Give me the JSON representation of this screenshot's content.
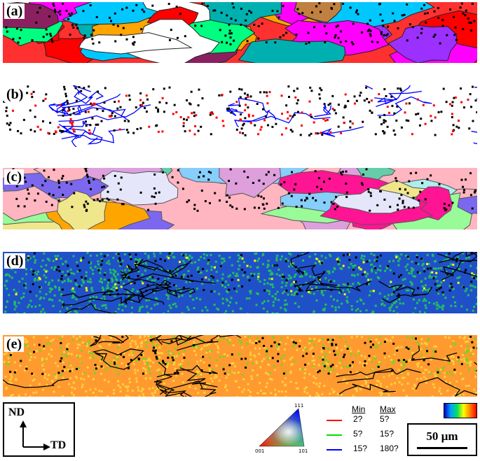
{
  "panels": [
    {
      "label": "(a)",
      "kind": "ipf-map"
    },
    {
      "label": "(b)",
      "kind": "boundary-map"
    },
    {
      "label": "(c)",
      "kind": "grain-map"
    },
    {
      "label": "(d)",
      "kind": "kam-map"
    },
    {
      "label": "(e)",
      "kind": "strain-map"
    }
  ],
  "axes": {
    "nd": "ND",
    "td": "TD"
  },
  "ipf_key": {
    "top": "111",
    "bottom_left": "001",
    "bottom_right": "101"
  },
  "boundary_legend": {
    "min_header": "Min",
    "max_header": "Max",
    "rows": [
      {
        "color": "#ff0000",
        "min": "2?",
        "max": "5?"
      },
      {
        "color": "#00e000",
        "min": "5?",
        "max": "15?"
      },
      {
        "color": "#0000ff",
        "min": "15?",
        "max": "180?"
      }
    ]
  },
  "scale_bar": {
    "label": "50 µm"
  },
  "colors": {
    "ipf": [
      "#ff0000",
      "#ff00ff",
      "#9b30ff",
      "#0000ff",
      "#00c8ff",
      "#00ff80",
      "#ffa500",
      "#c08040",
      "#ff69b4",
      "#ffffff",
      "#00b0b0",
      "#8b2060"
    ],
    "grain": [
      "#ffb6c1",
      "#98fb98",
      "#87cefa",
      "#ffa500",
      "#dda0dd",
      "#ff7f50",
      "#7b68ee",
      "#afeeee",
      "#f0e68c",
      "#66cdaa",
      "#e6e6fa",
      "#ff1493"
    ],
    "boundary": "#0000ff",
    "kam_bg": "#2050c8",
    "strain_bg": "#ff9a30"
  }
}
